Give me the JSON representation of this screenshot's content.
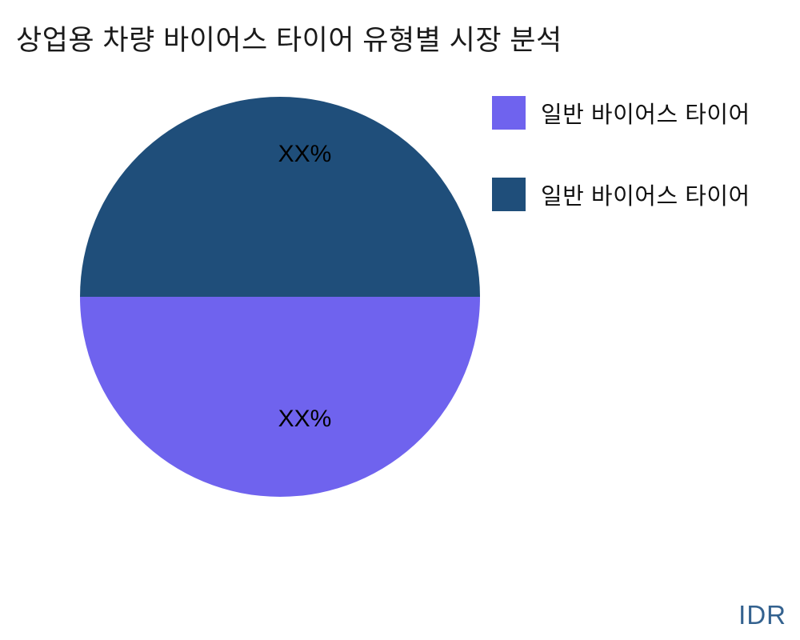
{
  "chart_data": {
    "type": "pie",
    "title": "상업용 차량 바이어스 타이어 유형별 시장 분석",
    "slices": [
      {
        "label": "일반 바이어스 타이어",
        "value": 50,
        "text": "XX%",
        "color": "#6F63EE",
        "position": "bottom"
      },
      {
        "label": "일반 바이어스 타이어",
        "value": 50,
        "text": "XX%",
        "color": "#1F4E7A",
        "position": "top"
      }
    ],
    "legend_position": "right",
    "label_position": "inside"
  },
  "branding": {
    "watermark": "IDR",
    "watermark_color": "#34628F"
  }
}
